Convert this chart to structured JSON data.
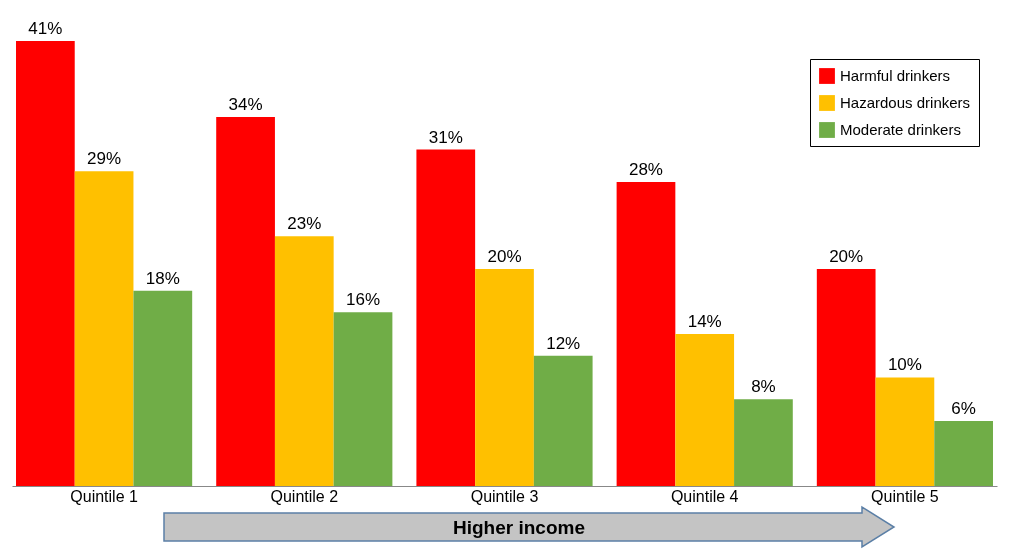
{
  "chart_data": {
    "type": "bar",
    "categories": [
      "Quintile 1",
      "Quintile 2",
      "Quintile 3",
      "Quintile 4",
      "Quintile 5"
    ],
    "series": [
      {
        "name": "Harmful drinkers",
        "color": "#ff0000",
        "values": [
          41,
          34,
          31,
          28,
          20
        ],
        "value_labels": [
          "41%",
          "34%",
          "31%",
          "28%",
          "20%"
        ]
      },
      {
        "name": "Hazardous drinkers",
        "color": "#ffc000",
        "values": [
          29,
          23,
          20,
          14,
          10
        ],
        "value_labels": [
          "29%",
          "23%",
          "20%",
          "14%",
          "10%"
        ]
      },
      {
        "name": "Moderate drinkers",
        "color": "#70ad47",
        "values": [
          18,
          16,
          12,
          8,
          6
        ],
        "value_labels": [
          "18%",
          "16%",
          "12%",
          "8%",
          "6%"
        ]
      }
    ],
    "legend": "top right",
    "grid": false,
    "annotations": [
      "Higher income"
    ]
  }
}
